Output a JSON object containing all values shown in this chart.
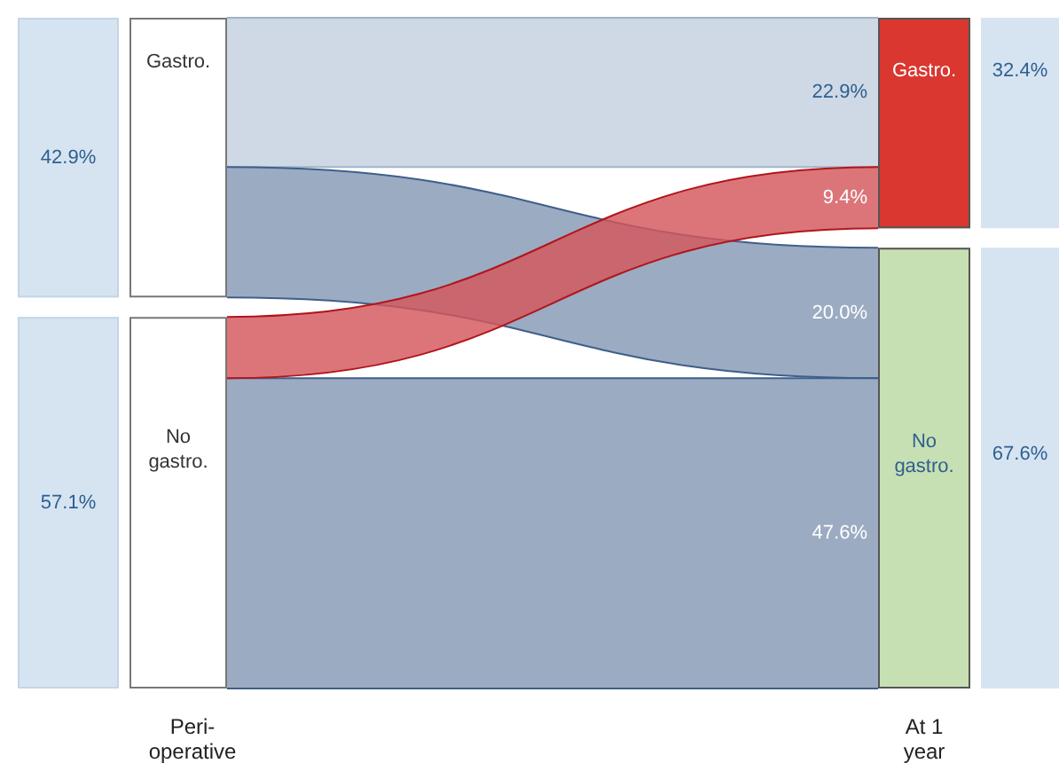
{
  "chart_data": {
    "type": "other",
    "categories": [
      "Gastro.",
      "No gastro."
    ],
    "colors": [
      "#d9372f",
      "#c6e0b4"
    ],
    "series": [
      {
        "name": "Gastro.",
        "values": [
          22.9,
          20.0
        ],
        "value_labels": [
          "22.9%",
          "20.0%"
        ],
        "colors": [
          "#c3d1df",
          "#8599b4"
        ]
      },
      {
        "name": "No gastro.",
        "values": [
          9.4,
          47.6
        ],
        "value_labels": [
          "9.4%",
          "47.6%"
        ],
        "colors": [
          "#d4575c",
          "#8599b4"
        ]
      }
    ],
    "totals": [
      "42.9%",
      "57.1%",
      "32.4%",
      "67.6%"
    ],
    "annotations": [
      "Peri-operative",
      "At 1 year"
    ]
  }
}
